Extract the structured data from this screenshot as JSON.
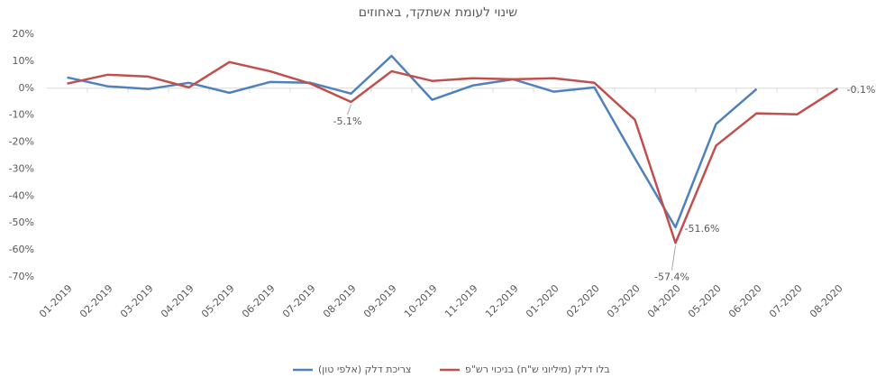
{
  "chart_data": {
    "type": "line",
    "title": "שינוי לעומת אשתקד, באחוזים",
    "categories": [
      "01-2019",
      "02-2019",
      "03-2019",
      "04-2019",
      "05-2019",
      "06-2019",
      "07-2019",
      "08-2019",
      "09-2019",
      "10-2019",
      "11-2019",
      "12-2019",
      "01-2020",
      "02-2020",
      "03-2020",
      "04-2020",
      "05-2020",
      "06-2020",
      "07-2020",
      "08-2020"
    ],
    "series": [
      {
        "name": "צריכת דלק (אלפי טון)",
        "color": "#4f81bd",
        "values": [
          4,
          0.7,
          -0.3,
          2,
          -1.7,
          2.3,
          2,
          -2,
          12,
          -4.3,
          1,
          3.3,
          -1.3,
          0.3,
          -26,
          -51.6,
          -13.3,
          -0.3,
          null,
          null
        ],
        "value_labels": [
          null,
          null,
          null,
          null,
          null,
          null,
          null,
          null,
          null,
          null,
          null,
          null,
          null,
          null,
          null,
          "-51.6%",
          null,
          null,
          null,
          null
        ]
      },
      {
        "name": "בלו דלק (מיליוני ש\"ח) בניכוי רש\"פ",
        "color": "#c0504d",
        "values": [
          1.7,
          5,
          4.3,
          0.3,
          9.7,
          6.3,
          1.7,
          -5.1,
          6.3,
          2.7,
          3.7,
          3.3,
          3.7,
          2,
          -11.7,
          -57.4,
          -21.3,
          -9.3,
          -9.7,
          -0.1
        ],
        "value_labels": [
          null,
          null,
          null,
          null,
          null,
          null,
          null,
          "-5.1%",
          null,
          null,
          null,
          null,
          null,
          null,
          null,
          "-57.4%",
          null,
          null,
          null,
          "-0.1%"
        ]
      }
    ],
    "ylim": [
      -70,
      20
    ],
    "yticks": [
      {
        "value": -70,
        "label": "-70%"
      },
      {
        "value": -60,
        "label": "-60%"
      },
      {
        "value": -50,
        "label": "-50%"
      },
      {
        "value": -40,
        "label": "-40%"
      },
      {
        "value": -30,
        "label": "-30%"
      },
      {
        "value": -20,
        "label": "-20%"
      },
      {
        "value": -10,
        "label": "-10%"
      },
      {
        "value": 0,
        "label": "0%"
      },
      {
        "value": 10,
        "label": "10%"
      },
      {
        "value": 20,
        "label": "20%"
      }
    ],
    "grid": false,
    "legend": "bottom"
  }
}
